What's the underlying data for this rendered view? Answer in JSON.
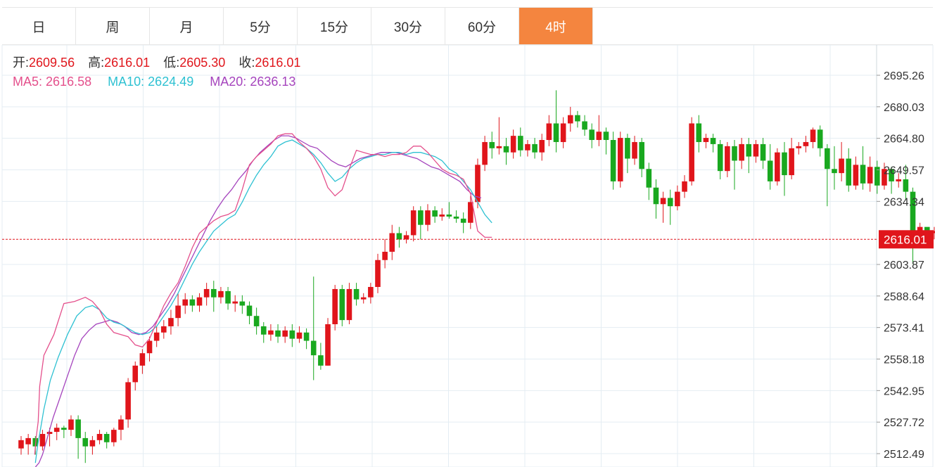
{
  "tabs": [
    {
      "label": "日",
      "active": false
    },
    {
      "label": "周",
      "active": false
    },
    {
      "label": "月",
      "active": false
    },
    {
      "label": "5分",
      "active": false
    },
    {
      "label": "15分",
      "active": false
    },
    {
      "label": "30分",
      "active": false
    },
    {
      "label": "60分",
      "active": false
    },
    {
      "label": "4时",
      "active": true
    }
  ],
  "info": {
    "open_label": "开:",
    "open": "2609.56",
    "high_label": "高:",
    "high": "2616.01",
    "low_label": "低:",
    "low": "2605.30",
    "close_label": "收:",
    "close": "2616.01",
    "ma5_label": "MA5:",
    "ma5": "2616.58",
    "ma10_label": "MA10:",
    "ma10": "2624.49",
    "ma20_label": "MA20:",
    "ma20": "2636.13"
  },
  "colors": {
    "up": "#e0151b",
    "down": "#19a81f",
    "ma5": "#e4508c",
    "ma10": "#2ec1d2",
    "ma20": "#a544bd",
    "grid": "#e4edf3",
    "active_tab": "#f4853f",
    "axis_text": "#333333"
  },
  "chart_data": {
    "type": "candlestick",
    "y_ticks": [
      "2695.26",
      "2680.03",
      "2664.80",
      "2649.57",
      "2634.34",
      "2603.87",
      "2588.64",
      "2573.41",
      "2558.18",
      "2542.95",
      "2527.72",
      "2512.49"
    ],
    "ylim": [
      2508,
      2703
    ],
    "current_price": "2616.01",
    "candles": [
      [
        2515,
        2519,
        2512,
        2521
      ],
      [
        2517,
        2520,
        2512,
        2522
      ],
      [
        2520,
        2516,
        2512,
        2521
      ],
      [
        2516,
        2522,
        2514,
        2524
      ],
      [
        2522,
        2523,
        2516,
        2525
      ],
      [
        2523,
        2525,
        2519,
        2527
      ],
      [
        2525,
        2524,
        2520,
        2526
      ],
      [
        2524,
        2529,
        2521,
        2531
      ],
      [
        2529,
        2520,
        2510,
        2531
      ],
      [
        2520,
        2516,
        2508,
        2523
      ],
      [
        2516,
        2519,
        2512,
        2521
      ],
      [
        2519,
        2522,
        2517,
        2524
      ],
      [
        2522,
        2518,
        2515,
        2523
      ],
      [
        2518,
        2524,
        2516,
        2525
      ],
      [
        2524,
        2529,
        2519,
        2531
      ],
      [
        2529,
        2547,
        2525,
        2549
      ],
      [
        2547,
        2555,
        2543,
        2557
      ],
      [
        2555,
        2561,
        2551,
        2563
      ],
      [
        2561,
        2567,
        2557,
        2569
      ],
      [
        2567,
        2571,
        2564,
        2574
      ],
      [
        2571,
        2574,
        2568,
        2577
      ],
      [
        2574,
        2578,
        2570,
        2582
      ],
      [
        2578,
        2584,
        2574,
        2590
      ],
      [
        2584,
        2587,
        2580,
        2590
      ],
      [
        2587,
        2584,
        2581,
        2589
      ],
      [
        2584,
        2588,
        2581,
        2590
      ],
      [
        2588,
        2592,
        2584,
        2595
      ],
      [
        2592,
        2588,
        2581,
        2596
      ],
      [
        2588,
        2591,
        2585,
        2593
      ],
      [
        2591,
        2585,
        2582,
        2593
      ],
      [
        2585,
        2586,
        2581,
        2589
      ],
      [
        2586,
        2584,
        2580,
        2589
      ],
      [
        2584,
        2579,
        2575,
        2586
      ],
      [
        2579,
        2574,
        2570,
        2583
      ],
      [
        2574,
        2570,
        2566,
        2576
      ],
      [
        2570,
        2572,
        2567,
        2575
      ],
      [
        2572,
        2569,
        2566,
        2575
      ],
      [
        2569,
        2572,
        2566,
        2574
      ],
      [
        2572,
        2568,
        2564,
        2575
      ],
      [
        2568,
        2571,
        2566,
        2574
      ],
      [
        2571,
        2567,
        2563,
        2573
      ],
      [
        2567,
        2560,
        2548,
        2598
      ],
      [
        2560,
        2555,
        2553,
        2566
      ],
      [
        2555,
        2575,
        2555,
        2578
      ],
      [
        2575,
        2592,
        2572,
        2594
      ],
      [
        2592,
        2577,
        2574,
        2594
      ],
      [
        2577,
        2592,
        2575,
        2595
      ],
      [
        2592,
        2587,
        2584,
        2595
      ],
      [
        2587,
        2588,
        2585,
        2590
      ],
      [
        2588,
        2593,
        2585,
        2595
      ],
      [
        2593,
        2606,
        2590,
        2609
      ],
      [
        2606,
        2610,
        2602,
        2616
      ],
      [
        2610,
        2619,
        2606,
        2623
      ],
      [
        2619,
        2616,
        2612,
        2622
      ],
      [
        2616,
        2618,
        2614,
        2620
      ],
      [
        2618,
        2630,
        2615,
        2632
      ],
      [
        2630,
        2623,
        2616,
        2632
      ],
      [
        2623,
        2630,
        2620,
        2633
      ],
      [
        2630,
        2627,
        2624,
        2632
      ],
      [
        2627,
        2628,
        2625,
        2631
      ],
      [
        2628,
        2627,
        2626,
        2634
      ],
      [
        2627,
        2626,
        2624,
        2630
      ],
      [
        2626,
        2624,
        2619,
        2629
      ],
      [
        2624,
        2634,
        2621,
        2637
      ],
      [
        2634,
        2652,
        2631,
        2655
      ],
      [
        2652,
        2663,
        2649,
        2666
      ],
      [
        2663,
        2660,
        2655,
        2668
      ],
      [
        2660,
        2661,
        2657,
        2675
      ],
      [
        2661,
        2658,
        2652,
        2665
      ],
      [
        2658,
        2666,
        2655,
        2669
      ],
      [
        2666,
        2659,
        2656,
        2670
      ],
      [
        2659,
        2662,
        2656,
        2664
      ],
      [
        2662,
        2658,
        2655,
        2665
      ],
      [
        2658,
        2664,
        2654,
        2667
      ],
      [
        2664,
        2672,
        2661,
        2676
      ],
      [
        2672,
        2663,
        2658,
        2688
      ],
      [
        2663,
        2672,
        2660,
        2675
      ],
      [
        2672,
        2676,
        2668,
        2680
      ],
      [
        2676,
        2673,
        2670,
        2678
      ],
      [
        2673,
        2669,
        2666,
        2676
      ],
      [
        2669,
        2664,
        2660,
        2672
      ],
      [
        2664,
        2668,
        2661,
        2676
      ],
      [
        2668,
        2664,
        2657,
        2670
      ],
      [
        2664,
        2644,
        2640,
        2668
      ],
      [
        2644,
        2665,
        2641,
        2668
      ],
      [
        2665,
        2655,
        2648,
        2667
      ],
      [
        2655,
        2663,
        2652,
        2666
      ],
      [
        2663,
        2650,
        2646,
        2665
      ],
      [
        2650,
        2641,
        2635,
        2653
      ],
      [
        2641,
        2633,
        2626,
        2645
      ],
      [
        2633,
        2636,
        2624,
        2639
      ],
      [
        2636,
        2632,
        2623,
        2640
      ],
      [
        2632,
        2639,
        2630,
        2642
      ],
      [
        2639,
        2644,
        2636,
        2647
      ],
      [
        2644,
        2672,
        2642,
        2675
      ],
      [
        2672,
        2663,
        2658,
        2676
      ],
      [
        2663,
        2665,
        2660,
        2667
      ],
      [
        2665,
        2662,
        2658,
        2667
      ],
      [
        2662,
        2649,
        2645,
        2664
      ],
      [
        2649,
        2661,
        2646,
        2663
      ],
      [
        2661,
        2654,
        2640,
        2664
      ],
      [
        2654,
        2662,
        2650,
        2665
      ],
      [
        2662,
        2656,
        2648,
        2665
      ],
      [
        2656,
        2662,
        2653,
        2664
      ],
      [
        2662,
        2654,
        2650,
        2665
      ],
      [
        2654,
        2644,
        2640,
        2662
      ],
      [
        2644,
        2658,
        2642,
        2660
      ],
      [
        2658,
        2647,
        2637,
        2663
      ],
      [
        2647,
        2660,
        2645,
        2665
      ],
      [
        2660,
        2661,
        2657,
        2663
      ],
      [
        2661,
        2663,
        2658,
        2666
      ],
      [
        2663,
        2669,
        2660,
        2670
      ],
      [
        2669,
        2660,
        2656,
        2671
      ],
      [
        2660,
        2650,
        2632,
        2662
      ],
      [
        2650,
        2648,
        2640,
        2661
      ],
      [
        2648,
        2655,
        2644,
        2663
      ],
      [
        2655,
        2642,
        2639,
        2660
      ],
      [
        2642,
        2652,
        2640,
        2656
      ],
      [
        2652,
        2643,
        2640,
        2661
      ],
      [
        2643,
        2651,
        2639,
        2656
      ],
      [
        2651,
        2642,
        2638,
        2654
      ],
      [
        2642,
        2650,
        2640,
        2653
      ],
      [
        2650,
        2644,
        2638,
        2651
      ],
      [
        2644,
        2645,
        2641,
        2648
      ],
      [
        2645,
        2639,
        2635,
        2652
      ],
      [
        2639,
        2616,
        2604,
        2641
      ],
      [
        2616,
        2622,
        2613,
        2624
      ],
      [
        2622,
        2619,
        2617,
        2621
      ],
      [
        2619,
        2620,
        2616,
        2622
      ],
      [
        2620,
        2618,
        2615,
        2621
      ],
      [
        2618,
        2611,
        2607,
        2624
      ],
      [
        2611,
        2618,
        2605,
        2619
      ],
      [
        2609.56,
        2616.01,
        2605.3,
        2616.01
      ]
    ],
    "ma5": [
      [
        2519,
        2512
      ],
      [
        2521,
        2520
      ],
      [
        2524,
        2528
      ],
      [
        2526,
        2545
      ],
      [
        2532,
        2560
      ],
      [
        2546,
        2570
      ],
      [
        2560,
        2585
      ],
      [
        2575,
        2586
      ],
      [
        2590,
        2588
      ],
      [
        2600,
        2586
      ],
      [
        2610,
        2582
      ],
      [
        2620,
        2575
      ],
      [
        2630,
        2571
      ],
      [
        2640,
        2570
      ],
      [
        2650,
        2569
      ],
      [
        2660,
        2565
      ],
      [
        2670,
        2564
      ],
      [
        2680,
        2568
      ],
      [
        2690,
        2576
      ],
      [
        2700,
        2584
      ],
      [
        2710,
        2590
      ],
      [
        2720,
        2595
      ],
      [
        2730,
        2603
      ],
      [
        2740,
        2612
      ],
      [
        2750,
        2619
      ],
      [
        2760,
        2622
      ],
      [
        2770,
        2625
      ],
      [
        2780,
        2627
      ],
      [
        2790,
        2628
      ],
      [
        2800,
        2630
      ],
      [
        2810,
        2640
      ],
      [
        2820,
        2652
      ],
      [
        2830,
        2656
      ],
      [
        2840,
        2659
      ],
      [
        2850,
        2662
      ],
      [
        2860,
        2666
      ],
      [
        2870,
        2667
      ],
      [
        2880,
        2667
      ],
      [
        2890,
        2663
      ],
      [
        2900,
        2660
      ],
      [
        2910,
        2656
      ],
      [
        2920,
        2650
      ],
      [
        2930,
        2641
      ],
      [
        2940,
        2637
      ],
      [
        2950,
        2640
      ],
      [
        2960,
        2650
      ],
      [
        2970,
        2659
      ],
      [
        2980,
        2658
      ],
      [
        2990,
        2657
      ],
      [
        3000,
        2657
      ],
      [
        3010,
        2656
      ],
      [
        3020,
        2657
      ],
      [
        3030,
        2657
      ],
      [
        3040,
        2658
      ],
      [
        3050,
        2661
      ],
      [
        3060,
        2661
      ],
      [
        3070,
        2658
      ],
      [
        3080,
        2654
      ],
      [
        3090,
        2650
      ],
      [
        3100,
        2648
      ],
      [
        3110,
        2647
      ],
      [
        3120,
        2645
      ],
      [
        3130,
        2638
      ],
      [
        3140,
        2620
      ],
      [
        3150,
        2617
      ],
      [
        3160,
        2617
      ]
    ],
    "ma10": [
      [
        2520,
        2508
      ],
      [
        2523,
        2516
      ],
      [
        2527,
        2524
      ],
      [
        2532,
        2534
      ],
      [
        2541,
        2548
      ],
      [
        2552,
        2559
      ],
      [
        2565,
        2570
      ],
      [
        2578,
        2579
      ],
      [
        2590,
        2583
      ],
      [
        2600,
        2584
      ],
      [
        2610,
        2582
      ],
      [
        2620,
        2578
      ],
      [
        2630,
        2576
      ],
      [
        2640,
        2575
      ],
      [
        2650,
        2573
      ],
      [
        2660,
        2571
      ],
      [
        2670,
        2570
      ],
      [
        2680,
        2571
      ],
      [
        2690,
        2574
      ],
      [
        2700,
        2579
      ],
      [
        2710,
        2584
      ],
      [
        2720,
        2590
      ],
      [
        2730,
        2597
      ],
      [
        2740,
        2604
      ],
      [
        2750,
        2610
      ],
      [
        2760,
        2615
      ],
      [
        2770,
        2620
      ],
      [
        2780,
        2623
      ],
      [
        2790,
        2626
      ],
      [
        2800,
        2628
      ],
      [
        2810,
        2634
      ],
      [
        2820,
        2641
      ],
      [
        2830,
        2647
      ],
      [
        2840,
        2652
      ],
      [
        2850,
        2656
      ],
      [
        2860,
        2661
      ],
      [
        2870,
        2663
      ],
      [
        2880,
        2664
      ],
      [
        2890,
        2662
      ],
      [
        2900,
        2660
      ],
      [
        2910,
        2657
      ],
      [
        2920,
        2653
      ],
      [
        2930,
        2648
      ],
      [
        2940,
        2644
      ],
      [
        2950,
        2646
      ],
      [
        2960,
        2650
      ],
      [
        2970,
        2653
      ],
      [
        2980,
        2655
      ],
      [
        2990,
        2656
      ],
      [
        3000,
        2657
      ],
      [
        3010,
        2657
      ],
      [
        3020,
        2658
      ],
      [
        3030,
        2658
      ],
      [
        3040,
        2657
      ],
      [
        3050,
        2658
      ],
      [
        3060,
        2658
      ],
      [
        3070,
        2657
      ],
      [
        3080,
        2656
      ],
      [
        3090,
        2654
      ],
      [
        3100,
        2650
      ],
      [
        3110,
        2648
      ],
      [
        3120,
        2644
      ],
      [
        3130,
        2640
      ],
      [
        3140,
        2634
      ],
      [
        3150,
        2628
      ],
      [
        3160,
        2624
      ]
    ],
    "ma20": [
      [
        2520,
        2506
      ],
      [
        2525,
        2508
      ],
      [
        2530,
        2512
      ],
      [
        2535,
        2518
      ],
      [
        2545,
        2530
      ],
      [
        2555,
        2540
      ],
      [
        2565,
        2550
      ],
      [
        2575,
        2560
      ],
      [
        2585,
        2568
      ],
      [
        2595,
        2572
      ],
      [
        2605,
        2575
      ],
      [
        2615,
        2576
      ],
      [
        2625,
        2577
      ],
      [
        2635,
        2576
      ],
      [
        2645,
        2574
      ],
      [
        2655,
        2571
      ],
      [
        2665,
        2570
      ],
      [
        2675,
        2571
      ],
      [
        2685,
        2574
      ],
      [
        2695,
        2579
      ],
      [
        2705,
        2584
      ],
      [
        2715,
        2590
      ],
      [
        2725,
        2597
      ],
      [
        2735,
        2604
      ],
      [
        2745,
        2611
      ],
      [
        2755,
        2618
      ],
      [
        2765,
        2625
      ],
      [
        2775,
        2631
      ],
      [
        2785,
        2636
      ],
      [
        2795,
        2640
      ],
      [
        2805,
        2645
      ],
      [
        2815,
        2649
      ],
      [
        2825,
        2654
      ],
      [
        2835,
        2658
      ],
      [
        2845,
        2661
      ],
      [
        2855,
        2664
      ],
      [
        2865,
        2666
      ],
      [
        2875,
        2666
      ],
      [
        2885,
        2665
      ],
      [
        2895,
        2663
      ],
      [
        2905,
        2661
      ],
      [
        2915,
        2660
      ],
      [
        2925,
        2657
      ],
      [
        2935,
        2654
      ],
      [
        2945,
        2652
      ],
      [
        2955,
        2651
      ],
      [
        2965,
        2653
      ],
      [
        2975,
        2655
      ],
      [
        2985,
        2656
      ],
      [
        2995,
        2657
      ],
      [
        3005,
        2658
      ],
      [
        3015,
        2658
      ],
      [
        3025,
        2658
      ],
      [
        3035,
        2657
      ],
      [
        3045,
        2656
      ],
      [
        3055,
        2655
      ],
      [
        3065,
        2653
      ],
      [
        3075,
        2651
      ],
      [
        3085,
        2650
      ],
      [
        3095,
        2648
      ],
      [
        3105,
        2646
      ],
      [
        3115,
        2644
      ],
      [
        3125,
        2640
      ],
      [
        3135,
        2637
      ],
      [
        3145,
        2636
      ]
    ]
  }
}
